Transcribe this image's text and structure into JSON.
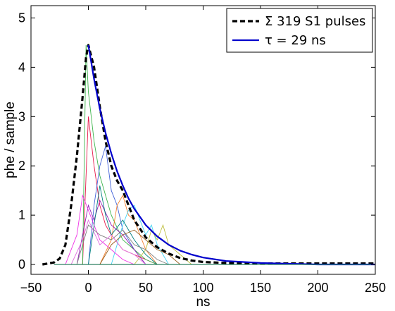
{
  "chart_data": {
    "type": "line",
    "title": "",
    "xlabel": "ns",
    "ylabel": "phe / sample",
    "xlim": [
      -50,
      250
    ],
    "ylim": [
      -0.2,
      5.25
    ],
    "xticks": [
      -50,
      0,
      50,
      100,
      150,
      200,
      250
    ],
    "xtick_labels": [
      "−50",
      "0",
      "50",
      "100",
      "150",
      "200",
      "250"
    ],
    "yticks": [
      0,
      1,
      2,
      3,
      4,
      5
    ],
    "ytick_labels": [
      "0",
      "1",
      "2",
      "3",
      "4",
      "5"
    ],
    "grid": false,
    "legend_position": "top-right",
    "series": [
      {
        "name": "Σ 319 S1 pulses",
        "style": "dashed",
        "color": "#000000",
        "x": [
          -40,
          -30,
          -25,
          -20,
          -15,
          -10,
          -5,
          -2,
          0,
          5,
          10,
          15,
          20,
          25,
          30,
          35,
          40,
          50,
          60,
          70,
          80,
          90,
          100,
          120,
          150,
          200,
          250
        ],
        "y": [
          0.0,
          0.04,
          0.12,
          0.4,
          1.2,
          2.2,
          3.4,
          4.2,
          4.45,
          4.0,
          3.2,
          2.5,
          2.0,
          1.7,
          1.5,
          1.2,
          0.9,
          0.55,
          0.35,
          0.22,
          0.13,
          0.08,
          0.05,
          0.03,
          0.02,
          0.02,
          0.02
        ]
      },
      {
        "name": "τ = 29 ns",
        "style": "solid",
        "color": "#0000cc",
        "x": [
          0,
          5,
          10,
          15,
          20,
          25,
          30,
          35,
          40,
          50,
          60,
          70,
          80,
          90,
          100,
          120,
          150,
          200,
          250
        ],
        "y": [
          4.45,
          3.76,
          3.16,
          2.67,
          2.25,
          1.89,
          1.6,
          1.34,
          1.13,
          0.8,
          0.57,
          0.4,
          0.28,
          0.2,
          0.14,
          0.07,
          0.03,
          0.0,
          0.0
        ]
      }
    ],
    "individual_pulses": {
      "count_shown": 12,
      "colors": [
        "#e6194b",
        "#3cb44b",
        "#4363d8",
        "#f58231",
        "#911eb4",
        "#42d4f4",
        "#f032e6",
        "#bfbf40",
        "#008080",
        "#808080",
        "#9a6324",
        "#e070e0"
      ],
      "traces": [
        {
          "x": [
            -5,
            0,
            5,
            10,
            15,
            20,
            30,
            40,
            50,
            60
          ],
          "y": [
            0,
            3.0,
            2.0,
            1.2,
            0.8,
            0.6,
            0.3,
            0.2,
            0.1,
            0
          ]
        },
        {
          "x": [
            -5,
            -2,
            0,
            5,
            10,
            20,
            30,
            40,
            50,
            60
          ],
          "y": [
            0,
            4.45,
            3.5,
            2.5,
            1.8,
            1.0,
            0.5,
            0.3,
            0.1,
            0
          ]
        },
        {
          "x": [
            0,
            5,
            10,
            15,
            20,
            25,
            30,
            40,
            50
          ],
          "y": [
            0,
            1.2,
            2.0,
            2.4,
            1.5,
            1.2,
            0.7,
            0.3,
            0
          ]
        },
        {
          "x": [
            10,
            20,
            25,
            30,
            35,
            40,
            45,
            50,
            60
          ],
          "y": [
            0,
            0.5,
            1.2,
            1.4,
            1.0,
            0.9,
            0.6,
            0.3,
            0
          ]
        },
        {
          "x": [
            -10,
            0,
            5,
            10,
            20,
            30,
            40,
            50
          ],
          "y": [
            0,
            1.2,
            0.9,
            1.3,
            0.8,
            0.6,
            0.3,
            0
          ]
        },
        {
          "x": [
            20,
            30,
            35,
            40,
            45,
            50,
            55,
            60,
            70
          ],
          "y": [
            0,
            0.8,
            1.1,
            1.2,
            0.9,
            0.6,
            0.8,
            0.4,
            0
          ]
        },
        {
          "x": [
            -20,
            -10,
            -5,
            0,
            5,
            10,
            20,
            30,
            40
          ],
          "y": [
            0,
            0.6,
            1.4,
            1.1,
            0.8,
            0.5,
            0.3,
            0.1,
            0
          ]
        },
        {
          "x": [
            40,
            50,
            55,
            60,
            65,
            70,
            80,
            90
          ],
          "y": [
            0,
            0.3,
            0.7,
            0.5,
            0.8,
            0.4,
            0.2,
            0
          ]
        },
        {
          "x": [
            0,
            10,
            15,
            20,
            30,
            40,
            50,
            60
          ],
          "y": [
            0,
            1.6,
            1.0,
            0.6,
            0.9,
            0.5,
            0.2,
            0
          ]
        },
        {
          "x": [
            -10,
            0,
            10,
            20,
            30,
            40,
            50,
            60,
            70
          ],
          "y": [
            0,
            0.8,
            0.6,
            0.5,
            0.7,
            0.4,
            0.3,
            0.1,
            0
          ]
        },
        {
          "x": [
            10,
            20,
            30,
            40,
            50,
            60,
            70,
            80
          ],
          "y": [
            0,
            0.4,
            0.6,
            0.7,
            0.5,
            0.3,
            0.2,
            0
          ]
        },
        {
          "x": [
            -15,
            -5,
            0,
            10,
            20,
            30,
            40,
            50
          ],
          "y": [
            0,
            0.5,
            0.9,
            0.4,
            0.6,
            0.3,
            0.2,
            0
          ]
        }
      ]
    }
  }
}
